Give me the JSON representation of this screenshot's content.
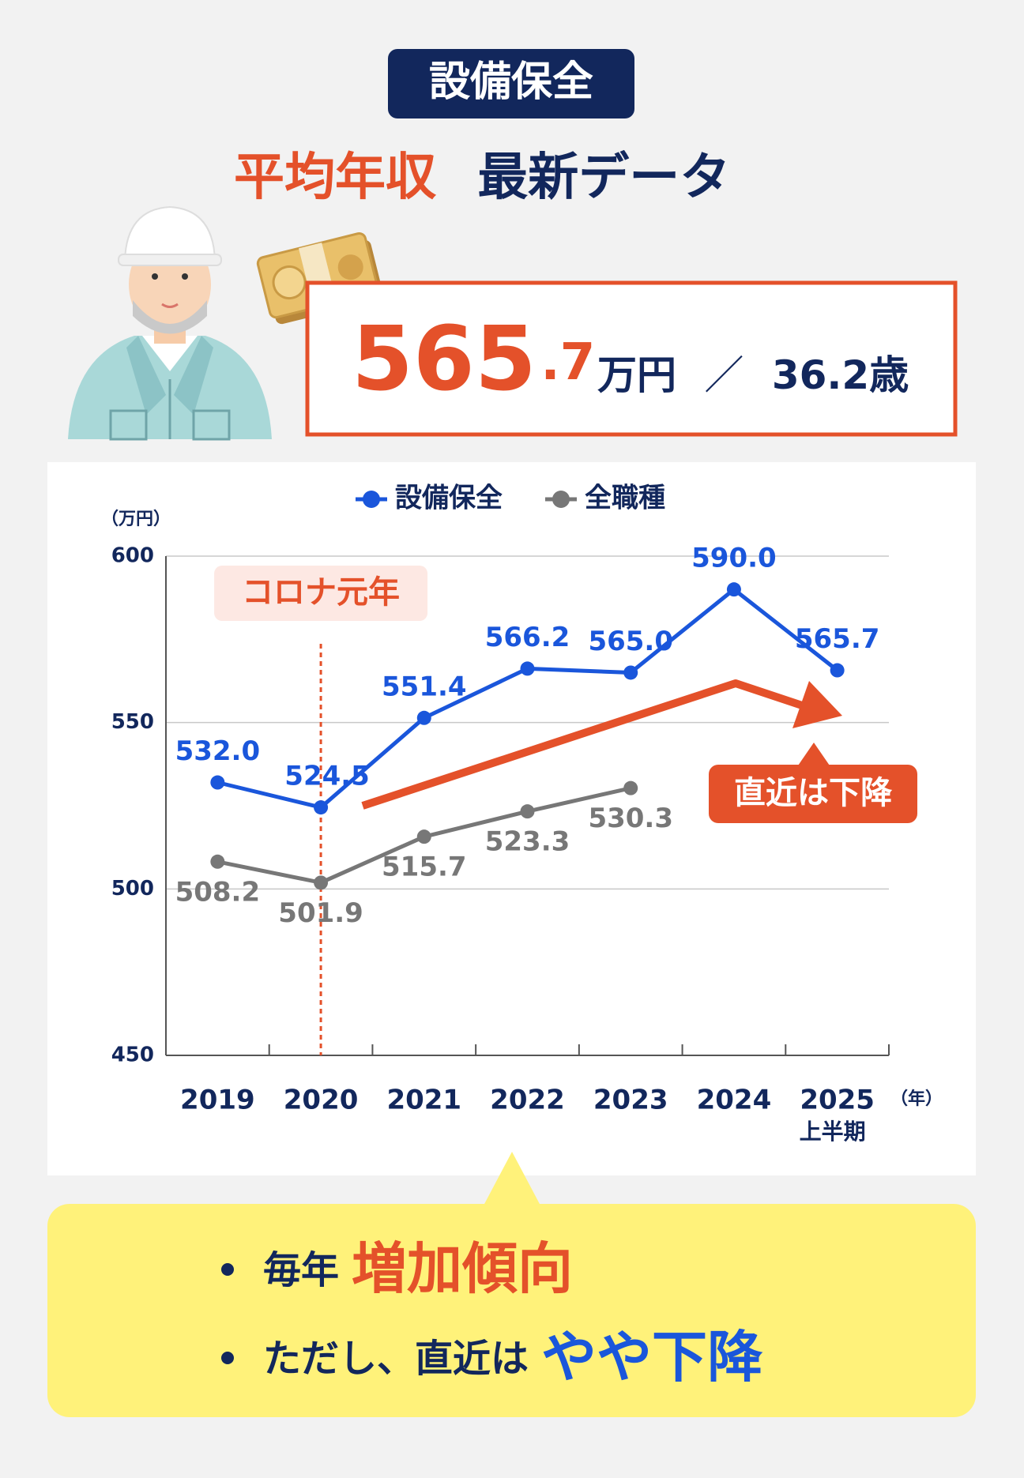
{
  "badge": "設備保全",
  "headline": {
    "highlight": "平均年収",
    "rest": "最新データ"
  },
  "summary": {
    "salary_int": "565",
    "salary_dec": ".7",
    "unit": "万円",
    "separator": "／",
    "age": "36.2歳"
  },
  "chart_data": {
    "type": "line",
    "y_unit": "（万円）",
    "x_unit": "（年）",
    "categories": [
      "2019",
      "2020",
      "2021",
      "2022",
      "2023",
      "2024",
      "2025"
    ],
    "last_category_note": "上半期",
    "series": [
      {
        "name": "設備保全",
        "color": "#1a56db",
        "values": [
          532.0,
          524.5,
          551.4,
          566.2,
          565.0,
          590.0,
          565.7
        ],
        "value_labels": [
          "532.0",
          "524.5",
          "551.4",
          "566.2",
          "565.0",
          "590.0",
          "565.7"
        ]
      },
      {
        "name": "全職種",
        "color": "#777777",
        "values": [
          508.2,
          501.9,
          515.7,
          523.3,
          530.3,
          null,
          null
        ],
        "value_labels": [
          "508.2",
          "501.9",
          "515.7",
          "523.3",
          "530.3",
          null,
          null
        ]
      }
    ],
    "ylim": [
      450,
      600
    ],
    "yticks": [
      450,
      500,
      550,
      600
    ],
    "grid": true,
    "legend": "top",
    "annotations": [
      {
        "text": "コロナ元年",
        "category": "2020"
      },
      {
        "text": "直近は下降"
      }
    ]
  },
  "bullets": [
    {
      "plain": "毎年",
      "highlight": "増加傾向"
    },
    {
      "plain": "ただし、直近は",
      "highlight": "やや下降"
    }
  ]
}
